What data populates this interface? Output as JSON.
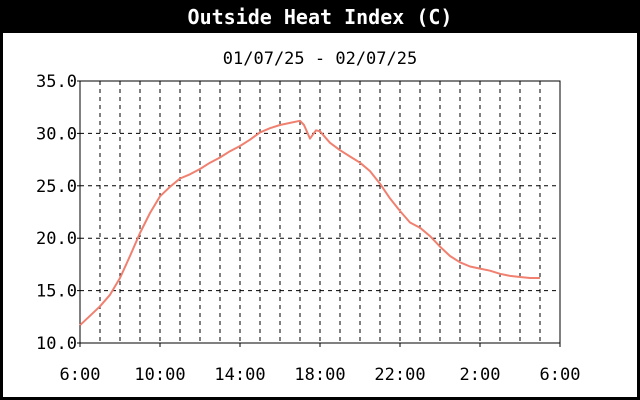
{
  "chart_data": {
    "type": "line",
    "title": "Outside Heat Index (C)",
    "subtitle": "01/07/25 - 02/07/25",
    "xlabel": "",
    "ylabel": "",
    "ylim": [
      10.0,
      35.0
    ],
    "xlim_hours": [
      0,
      24
    ],
    "yticks": [
      "10.0",
      "15.0",
      "20.0",
      "25.0",
      "30.0",
      "35.0"
    ],
    "xticks": [
      {
        "label": "6:00",
        "h": 0
      },
      {
        "label": "10:00",
        "h": 4
      },
      {
        "label": "14:00",
        "h": 8
      },
      {
        "label": "18:00",
        "h": 12
      },
      {
        "label": "22:00",
        "h": 16
      },
      {
        "label": "2:00",
        "h": 20
      },
      {
        "label": "6:00",
        "h": 24
      }
    ],
    "grid": true,
    "line_color": "#f08070",
    "series": [
      {
        "name": "",
        "x_hours": [
          0,
          0.5,
          1,
          1.5,
          2,
          2.5,
          3,
          3.5,
          4,
          4.5,
          5,
          5.5,
          6,
          6.5,
          7,
          7.5,
          8,
          8.5,
          9,
          9.5,
          10,
          10.5,
          11,
          11.2,
          11.5,
          11.8,
          12,
          12.5,
          13,
          13.5,
          14,
          14.5,
          15,
          15.5,
          16,
          16.5,
          17,
          17.5,
          18,
          18.5,
          19,
          19.5,
          20,
          20.5,
          21,
          21.5,
          22,
          22.5,
          23
        ],
        "values": [
          11.7,
          12.6,
          13.5,
          14.6,
          16.2,
          18.3,
          20.5,
          22.4,
          24.0,
          24.9,
          25.7,
          26.1,
          26.6,
          27.2,
          27.7,
          28.3,
          28.8,
          29.4,
          30.1,
          30.5,
          30.8,
          31.0,
          31.2,
          30.8,
          29.5,
          30.3,
          30.2,
          29.1,
          28.4,
          27.8,
          27.2,
          26.4,
          25.2,
          23.8,
          22.6,
          21.5,
          21.0,
          20.2,
          19.2,
          18.3,
          17.7,
          17.3,
          17.1,
          16.9,
          16.6,
          16.4,
          16.3,
          16.2,
          16.2
        ]
      }
    ]
  }
}
